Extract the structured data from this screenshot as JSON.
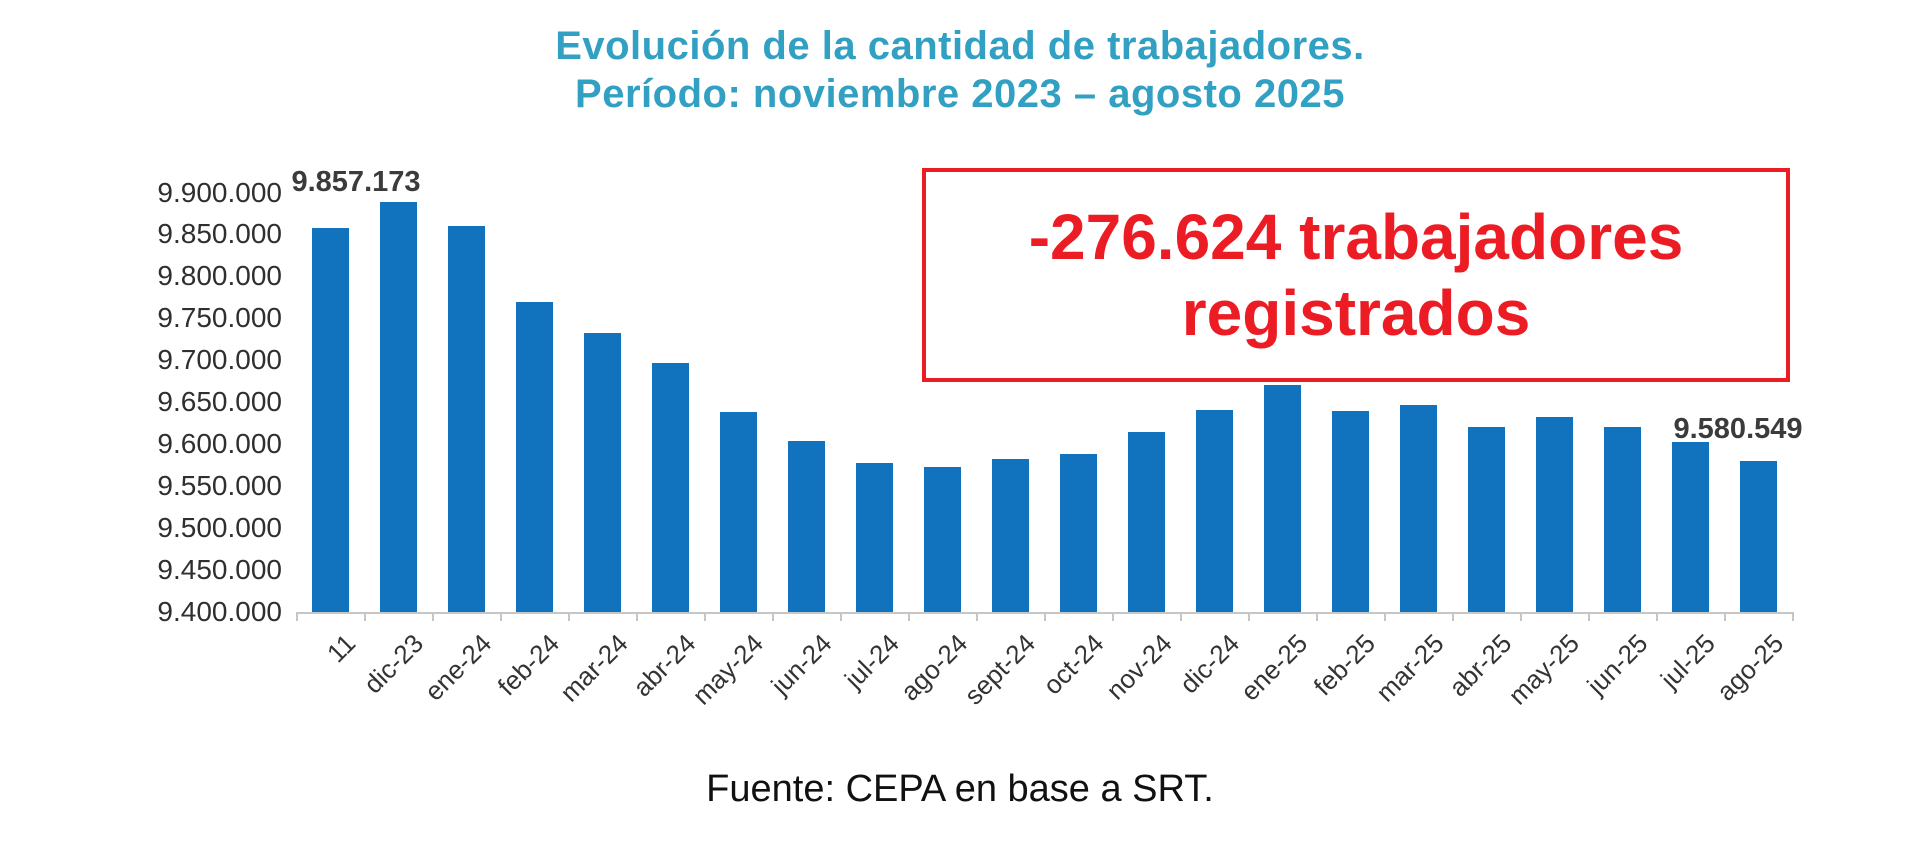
{
  "title": {
    "line1": "Evolución de la cantidad de trabajadores.",
    "line2": "Período: noviembre 2023 – agosto 2025"
  },
  "annotation_box": {
    "line1": "-276.624 trabajadores",
    "line2": "registrados"
  },
  "footer": {
    "source": "Fuente: CEPA en base a SRT."
  },
  "colors": {
    "bar": "#1172bd",
    "title": "#31a0c2",
    "annotation": "#ec1c24",
    "axis_line": "#c6c6c6",
    "tick_text": "#333333"
  },
  "chart_data": {
    "type": "bar",
    "title": "Evolución de la cantidad de trabajadores. Período: noviembre 2023 – agosto 2025",
    "xlabel": "",
    "ylabel": "",
    "categories": [
      "11",
      "dic-23",
      "ene-24",
      "feb-24",
      "mar-24",
      "abr-24",
      "may-24",
      "jun-24",
      "jul-24",
      "ago-24",
      "sept-24",
      "oct-24",
      "nov-24",
      "dic-24",
      "ene-25",
      "feb-25",
      "mar-25",
      "abr-25",
      "may-25",
      "jun-25",
      "jul-25",
      "ago-25"
    ],
    "values": [
      9857173,
      9889000,
      9860000,
      9770000,
      9732000,
      9697000,
      9638000,
      9604000,
      9578000,
      9573000,
      9582000,
      9588000,
      9615000,
      9641000,
      9670000,
      9639000,
      9647000,
      9620000,
      9633000,
      9621000,
      9603000,
      9580549
    ],
    "ylim": [
      9400000,
      9900000
    ],
    "ytick_step": 50000,
    "grid": false,
    "legend": false,
    "data_labels": [
      {
        "index": 0,
        "text": "9.857.173"
      },
      {
        "index": 21,
        "text": "9.580.549"
      }
    ]
  }
}
